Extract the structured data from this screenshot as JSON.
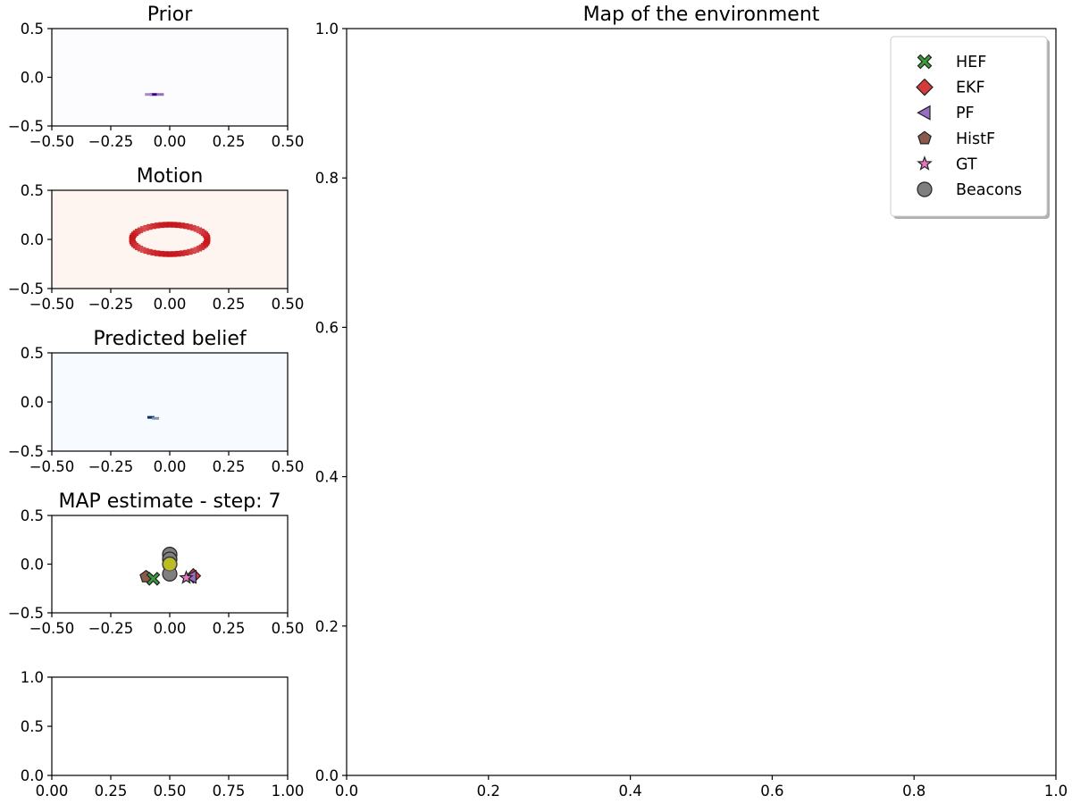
{
  "figure": {
    "background": "#ffffff"
  },
  "chart_data": [
    {
      "id": "prior",
      "type": "heatmap",
      "title": "Prior",
      "xlim": [
        -0.5,
        0.5
      ],
      "ylim": [
        -0.5,
        0.5
      ],
      "xticks": [
        "−0.50",
        "−0.25",
        "0.00",
        "0.25",
        "0.50"
      ],
      "yticks": [
        "0.5",
        "0.0",
        "−0.5"
      ],
      "colormap": "Purples",
      "peaks": [
        {
          "x": -0.07,
          "y": -0.17,
          "intensity": 1.0
        },
        {
          "x": -0.04,
          "y": -0.17,
          "intensity": 0.55
        },
        {
          "x": -0.09,
          "y": -0.17,
          "intensity": 0.45
        }
      ]
    },
    {
      "id": "motion",
      "type": "heatmap",
      "title": "Motion",
      "xlim": [
        -0.5,
        0.5
      ],
      "ylim": [
        -0.5,
        0.5
      ],
      "xticks": [
        "−0.50",
        "−0.25",
        "0.00",
        "0.25",
        "0.50"
      ],
      "yticks": [
        "0.5",
        "0.0",
        "−0.5"
      ],
      "colormap": "Reds",
      "ring": {
        "cx": 0.0,
        "cy": 0.0,
        "rx": 0.16,
        "ry": 0.15
      }
    },
    {
      "id": "predicted",
      "type": "heatmap",
      "title": "Predicted belief",
      "xlim": [
        -0.5,
        0.5
      ],
      "ylim": [
        -0.5,
        0.5
      ],
      "xticks": [
        "−0.50",
        "−0.25",
        "0.00",
        "0.25",
        "0.50"
      ],
      "yticks": [
        "0.5",
        "0.0",
        "−0.5"
      ],
      "colormap": "Blues",
      "peaks": [
        {
          "x": -0.08,
          "y": -0.15,
          "intensity": 1.0
        },
        {
          "x": -0.06,
          "y": -0.16,
          "intensity": 0.5
        }
      ]
    },
    {
      "id": "map-estimate",
      "type": "scatter",
      "title": "MAP estimate - step: 7",
      "xlim": [
        -0.5,
        0.5
      ],
      "ylim": [
        -0.5,
        0.5
      ],
      "xticks": [
        "−0.50",
        "−0.25",
        "0.00",
        "0.25",
        "0.50"
      ],
      "yticks": [
        "0.5",
        "0.0",
        "−0.5"
      ],
      "points": [
        {
          "series": "Beacons",
          "x": 0.0,
          "y": 0.1
        },
        {
          "series": "Beacons",
          "x": 0.0,
          "y": 0.05
        },
        {
          "series": "Beacons",
          "x": 0.0,
          "y": 0.0
        },
        {
          "series": "Beacons",
          "x": 0.0,
          "y": -0.1
        },
        {
          "series": "Beacons-current",
          "x": 0.0,
          "y": 0.0
        },
        {
          "series": "HistF",
          "x": -0.1,
          "y": -0.13
        },
        {
          "series": "HEF",
          "x": -0.07,
          "y": -0.15
        },
        {
          "series": "EKF",
          "x": 0.1,
          "y": -0.12
        },
        {
          "series": "PF",
          "x": 0.09,
          "y": -0.13
        },
        {
          "series": "GT",
          "x": 0.07,
          "y": -0.14
        }
      ]
    },
    {
      "id": "empty-small",
      "type": "scatter",
      "title": "",
      "xlim": [
        0.0,
        1.0
      ],
      "ylim": [
        0.0,
        1.0
      ],
      "xticks": [
        "0.00",
        "0.25",
        "0.50",
        "0.75",
        "1.00"
      ],
      "yticks": [
        "1.0",
        "0.5",
        "0.0"
      ],
      "points": []
    },
    {
      "id": "environment",
      "type": "scatter",
      "title": "Map of the environment",
      "xlim": [
        0.0,
        1.0
      ],
      "ylim": [
        0.0,
        1.0
      ],
      "xticks": [
        "0.0",
        "0.2",
        "0.4",
        "0.6",
        "0.8",
        "1.0"
      ],
      "yticks": [
        "1.0",
        "0.8",
        "0.6",
        "0.4",
        "0.2",
        "0.0"
      ],
      "points": [],
      "legend": {
        "placement": "top-right",
        "entries": [
          {
            "label": "HEF",
            "marker": "x-icon",
            "color": "#3a9b3a"
          },
          {
            "label": "EKF",
            "marker": "diamond-icon",
            "color": "#d63b3b"
          },
          {
            "label": "PF",
            "marker": "triangle-left-icon",
            "color": "#9a6cc4"
          },
          {
            "label": "HistF",
            "marker": "pentagon-icon",
            "color": "#8c5a4a"
          },
          {
            "label": "GT",
            "marker": "star-icon",
            "color": "#e377c2"
          },
          {
            "label": "Beacons",
            "marker": "circle-icon",
            "color": "#7f7f7f"
          }
        ]
      }
    }
  ],
  "colors": {
    "purples_max": "#3f007d",
    "reds_max": "#c8171c",
    "reds_bg": "#fff5f0",
    "blues_max": "#08306b",
    "blues_bg": "#f7fbff",
    "purples_bg": "#fcfbfd",
    "beacon_current": "#bcbd22"
  }
}
